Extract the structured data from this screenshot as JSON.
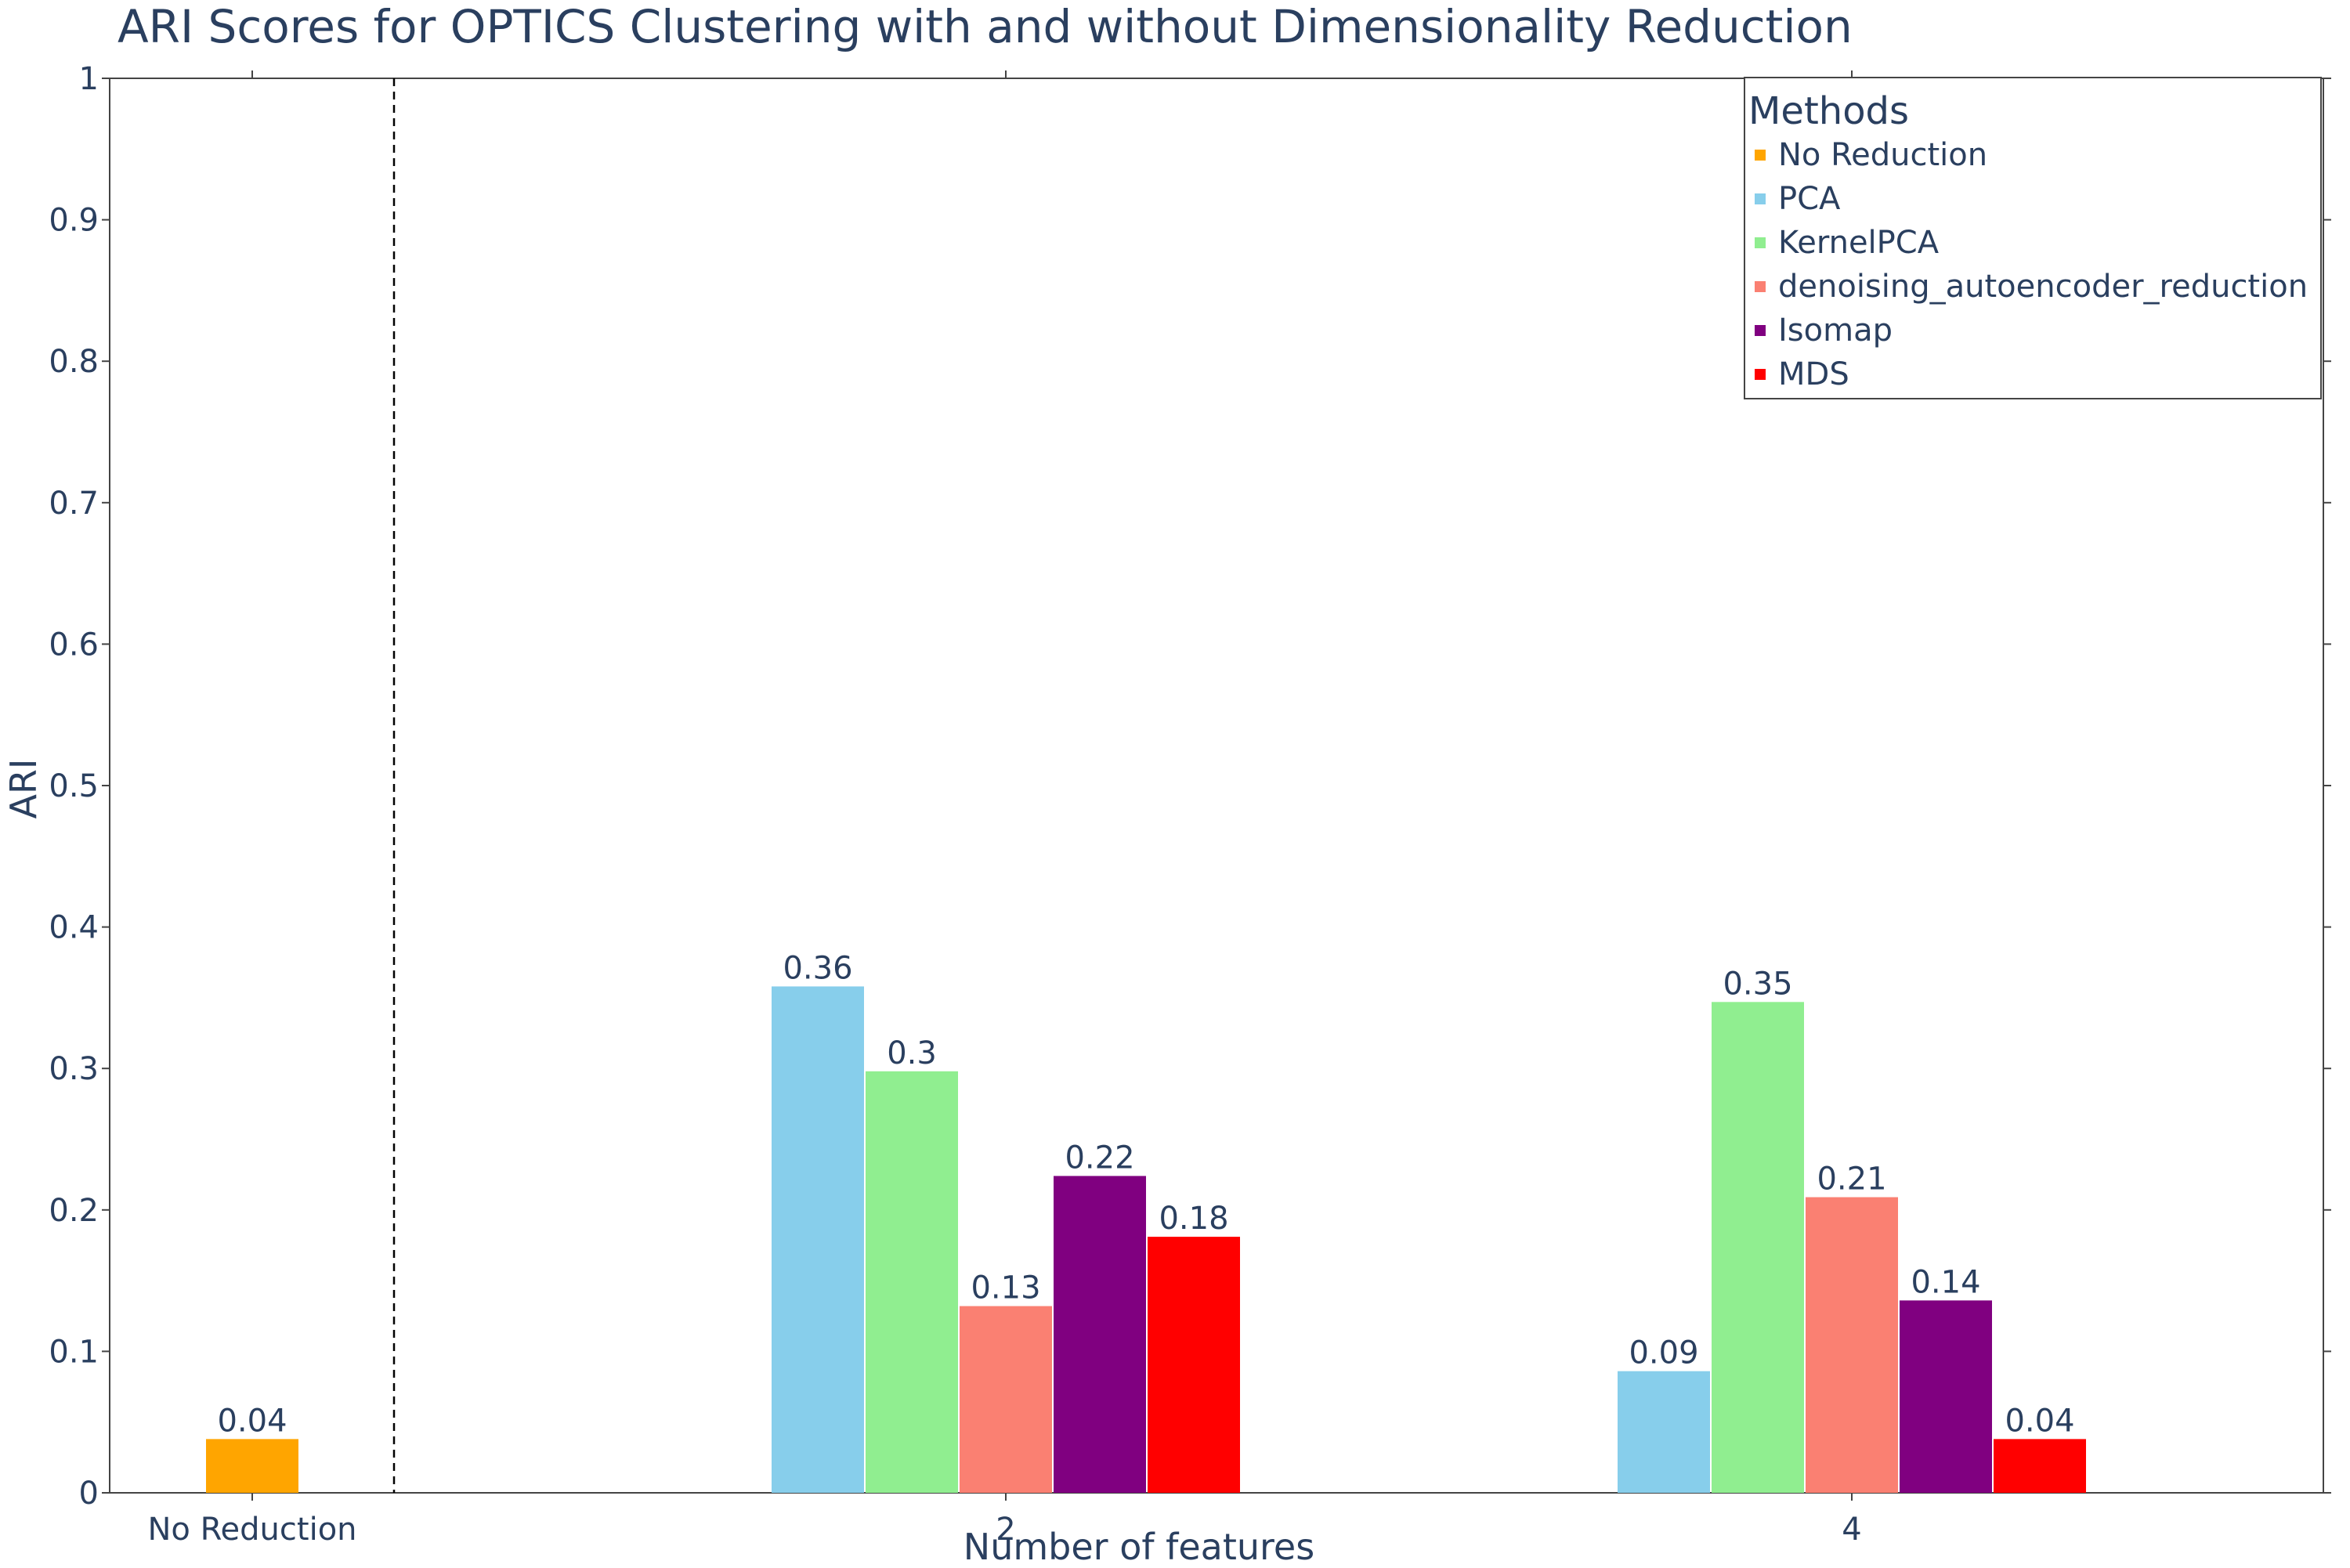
{
  "chart_data": {
    "type": "bar",
    "title": "ARI Scores for OPTICS Clustering with and without Dimensionality Reduction",
    "xlabel": "Number of features",
    "ylabel": "ARI",
    "ylim": [
      0,
      1
    ],
    "yticks": [
      "0",
      "0.1",
      "0.2",
      "0.3",
      "0.4",
      "0.5",
      "0.6",
      "0.7",
      "0.8",
      "0.9",
      "1"
    ],
    "categories": [
      "No Reduction",
      "2",
      "4"
    ],
    "legend": {
      "title": "Methods",
      "placement": "top-right"
    },
    "series": [
      {
        "name": "No Reduction",
        "color": "#FFA500",
        "values": [
          0.038,
          null,
          null
        ],
        "labels": [
          "0.04",
          "",
          ""
        ]
      },
      {
        "name": "PCA",
        "color": "#87CEEB",
        "values": [
          null,
          0.358,
          0.086
        ],
        "labels": [
          "",
          "0.36",
          "0.09"
        ]
      },
      {
        "name": "KernelPCA",
        "color": "#90EE90",
        "values": [
          null,
          0.298,
          0.347
        ],
        "labels": [
          "",
          "0.3",
          "0.35"
        ]
      },
      {
        "name": "denoising_autoencoder_reduction",
        "color": "#FA8072",
        "values": [
          null,
          0.132,
          0.209
        ],
        "labels": [
          "",
          "0.13",
          "0.21"
        ]
      },
      {
        "name": "Isomap",
        "color": "#800080",
        "values": [
          null,
          0.224,
          0.136
        ],
        "labels": [
          "",
          "0.22",
          "0.14"
        ]
      },
      {
        "name": "MDS",
        "color": "#FF0000",
        "values": [
          null,
          0.181,
          0.038
        ],
        "labels": [
          "",
          "0.18",
          "0.04"
        ]
      }
    ],
    "separator": "dashed vertical line after No Reduction"
  }
}
